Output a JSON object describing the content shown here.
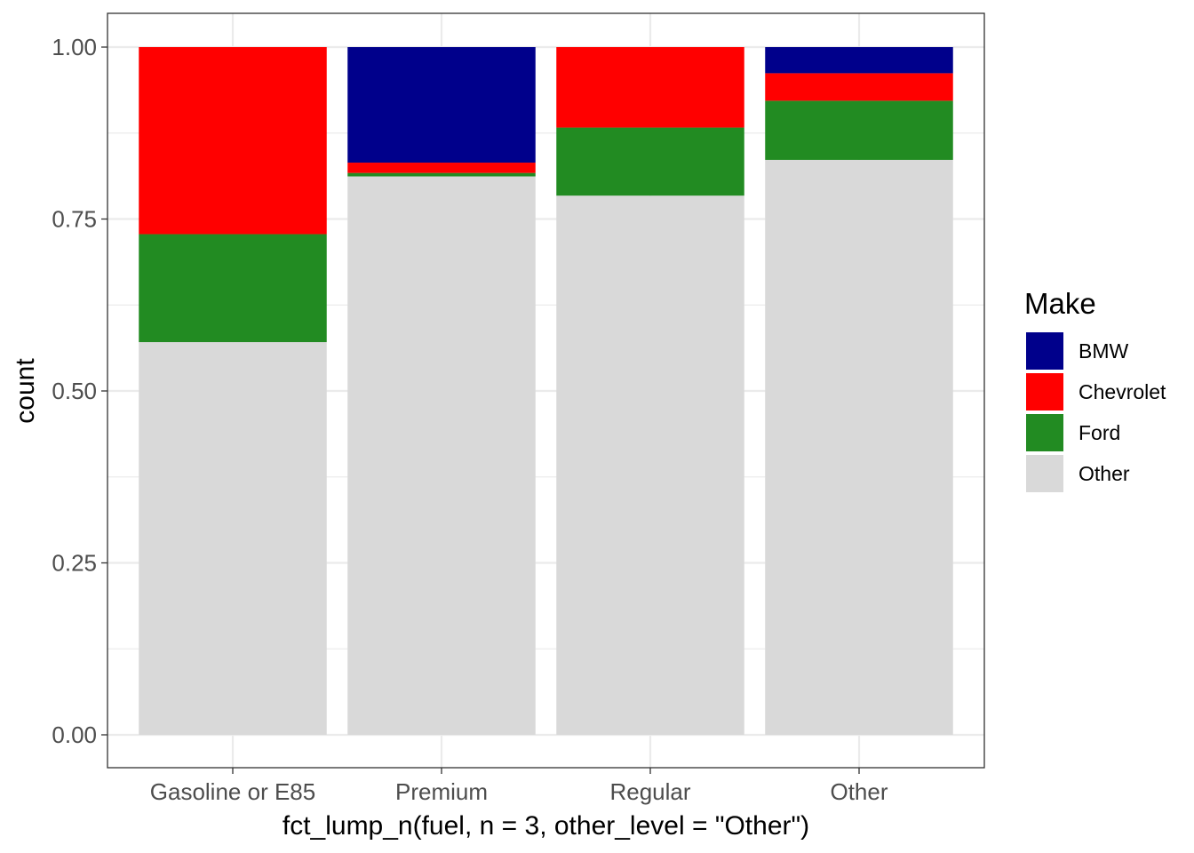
{
  "chart_data": {
    "type": "bar",
    "stacked": true,
    "position": "fill",
    "categories": [
      "Gasoline or E85",
      "Premium",
      "Regular",
      "Other"
    ],
    "series": [
      {
        "name": "BMW",
        "color": "#00008b",
        "values": [
          0.0,
          0.168,
          0.0,
          0.038
        ]
      },
      {
        "name": "Chevrolet",
        "color": "#ff0000",
        "values": [
          0.272,
          0.015,
          0.117,
          0.04
        ]
      },
      {
        "name": "Ford",
        "color": "#228b22",
        "values": [
          0.157,
          0.005,
          0.099,
          0.086
        ]
      },
      {
        "name": "Other",
        "color": "#d9d9d9",
        "values": [
          0.571,
          0.812,
          0.784,
          0.836
        ]
      }
    ],
    "stack_order_top_to_bottom": [
      "BMW",
      "Chevrolet",
      "Ford",
      "Other"
    ],
    "xlabel": "fct_lump_n(fuel, n = 3, other_level = \"Other\")",
    "ylabel": "count",
    "ylim": [
      0,
      1
    ],
    "yticks": [
      0.0,
      0.25,
      0.5,
      0.75,
      1.0
    ],
    "ytick_labels": [
      "0.00",
      "0.25",
      "0.50",
      "0.75",
      "1.00"
    ],
    "grid": true,
    "legend": {
      "title": "Make",
      "placement": "right",
      "entries": [
        "BMW",
        "Chevrolet",
        "Ford",
        "Other"
      ]
    }
  }
}
